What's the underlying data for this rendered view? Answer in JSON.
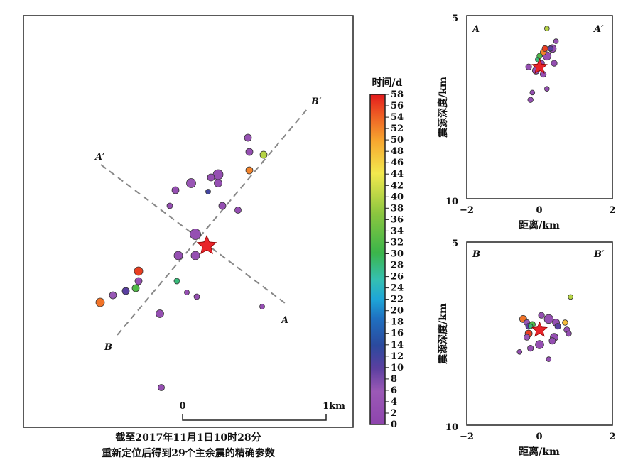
{
  "caption": {
    "line1": "截至2017年11月1日10时28分",
    "line2": "重新定位后得到29个主余震的精确参数"
  },
  "map": {
    "profile_labels": {
      "A": "A",
      "A_prime": "A′",
      "B": "B",
      "B_prime": "B′"
    },
    "scalebar": {
      "start_label": "0",
      "end_label": "1km"
    }
  },
  "colorbar": {
    "title": "时间/d",
    "min": 0,
    "max": 58,
    "ticks": [
      0,
      2,
      4,
      6,
      8,
      10,
      12,
      14,
      16,
      18,
      20,
      22,
      24,
      26,
      28,
      30,
      32,
      34,
      36,
      38,
      40,
      42,
      44,
      46,
      48,
      50,
      52,
      54,
      56,
      58
    ],
    "tick_labels": [
      "0",
      "2",
      "4",
      "6",
      "8",
      "10",
      "12",
      "14",
      "16",
      "18",
      "20",
      "22",
      "24",
      "26",
      "28",
      "30",
      "32",
      "34",
      "36",
      "38",
      "40",
      "42",
      "44",
      "46",
      "48",
      "50",
      "52",
      "54",
      "56",
      "58"
    ]
  },
  "sections": {
    "AA": {
      "left_label": "A",
      "right_label": "A′",
      "xlabel": "距离/km",
      "ylabel": "震源深度/km",
      "xticks": [
        "−2",
        "0",
        "2"
      ],
      "yticks": [
        "5",
        "10"
      ]
    },
    "BB": {
      "left_label": "B",
      "right_label": "B′",
      "xlabel": "距离/km",
      "ylabel": "震源深度/km",
      "xticks": [
        "−2",
        "0",
        "2"
      ],
      "yticks": [
        "5",
        "10"
      ]
    }
  },
  "colors": {
    "low": "#9a4fb5",
    "mid": "#3bb54a",
    "high": "#e31a1c",
    "star": "#e8242a"
  },
  "chart_data": [
    {
      "type": "scatter",
      "name": "map",
      "points": [
        {
          "x": 0.0,
          "y": 0.0,
          "day": 0,
          "mag": 2.0,
          "mainshock": true
        },
        {
          "x": 0.29,
          "y": -0.76,
          "day": 4,
          "mag": 1.0
        },
        {
          "x": 0.3,
          "y": -0.66,
          "day": 3,
          "mag": 1.0
        },
        {
          "x": 0.3,
          "y": -0.53,
          "day": 52,
          "mag": 1.0
        },
        {
          "x": 0.4,
          "y": -0.64,
          "day": 40,
          "mag": 1.0
        },
        {
          "x": 0.01,
          "y": -0.38,
          "day": 12,
          "mag": 0.7
        },
        {
          "x": -0.11,
          "y": -0.44,
          "day": 5,
          "mag": 1.3
        },
        {
          "x": -0.22,
          "y": -0.39,
          "day": 3,
          "mag": 1.0
        },
        {
          "x": 0.08,
          "y": -0.44,
          "day": 3,
          "mag": 1.1
        },
        {
          "x": 0.08,
          "y": -0.5,
          "day": 3,
          "mag": 1.4
        },
        {
          "x": 0.03,
          "y": -0.48,
          "day": 3,
          "mag": 1.0
        },
        {
          "x": 0.11,
          "y": -0.28,
          "day": 3,
          "mag": 1.0
        },
        {
          "x": 0.22,
          "y": -0.25,
          "day": 3,
          "mag": 0.9
        },
        {
          "x": -0.26,
          "y": -0.28,
          "day": 3,
          "mag": 0.8
        },
        {
          "x": -0.08,
          "y": -0.08,
          "day": 3,
          "mag": 1.5
        },
        {
          "x": -0.08,
          "y": 0.07,
          "day": 3,
          "mag": 1.2
        },
        {
          "x": -0.2,
          "y": 0.07,
          "day": 3,
          "mag": 1.2
        },
        {
          "x": -0.48,
          "y": 0.18,
          "day": 56,
          "mag": 1.2
        },
        {
          "x": -0.48,
          "y": 0.25,
          "day": 3,
          "mag": 1.0
        },
        {
          "x": -0.5,
          "y": 0.3,
          "day": 32,
          "mag": 1.0
        },
        {
          "x": -0.57,
          "y": 0.32,
          "day": 10,
          "mag": 1.0
        },
        {
          "x": -0.66,
          "y": 0.35,
          "day": 6,
          "mag": 1.0
        },
        {
          "x": -0.75,
          "y": 0.4,
          "day": 53,
          "mag": 1.2
        },
        {
          "x": -0.21,
          "y": 0.25,
          "day": 28,
          "mag": 0.8
        },
        {
          "x": -0.14,
          "y": 0.33,
          "day": 3,
          "mag": 0.7
        },
        {
          "x": -0.07,
          "y": 0.36,
          "day": 3,
          "mag": 0.8
        },
        {
          "x": -0.33,
          "y": 0.48,
          "day": 3,
          "mag": 1.1
        },
        {
          "x": 0.39,
          "y": 0.43,
          "day": 3,
          "mag": 0.7
        },
        {
          "x": -0.32,
          "y": 1.0,
          "day": 3,
          "mag": 0.9
        }
      ]
    },
    {
      "type": "scatter",
      "name": "section-AA",
      "xlim": [
        -2,
        2
      ],
      "ylim": [
        5,
        10
      ],
      "points": [
        {
          "x": 0.0,
          "y": 6.4,
          "day": 0,
          "mag": 2.0,
          "mainshock": true
        },
        {
          "x": 0.2,
          "y": 7.0,
          "day": 3,
          "mag": 0.8
        },
        {
          "x": -0.1,
          "y": 6.5,
          "day": 3,
          "mag": 1.2
        },
        {
          "x": 0.1,
          "y": 6.6,
          "day": 3,
          "mag": 1.0
        },
        {
          "x": 0.05,
          "y": 6.3,
          "day": 3,
          "mag": 1.0
        },
        {
          "x": 0.2,
          "y": 6.1,
          "day": 3,
          "mag": 1.4
        },
        {
          "x": 0.35,
          "y": 5.9,
          "day": 3,
          "mag": 1.3
        },
        {
          "x": 0.4,
          "y": 6.3,
          "day": 3,
          "mag": 1.0
        },
        {
          "x": 0.45,
          "y": 5.7,
          "day": 3,
          "mag": 0.8
        },
        {
          "x": 0.1,
          "y": 6.0,
          "day": 52,
          "mag": 1.0
        },
        {
          "x": 0.15,
          "y": 5.9,
          "day": 56,
          "mag": 1.0
        },
        {
          "x": 0.2,
          "y": 5.35,
          "day": 40,
          "mag": 0.8
        },
        {
          "x": -0.05,
          "y": 6.2,
          "day": 28,
          "mag": 0.8
        },
        {
          "x": 0.0,
          "y": 6.1,
          "day": 32,
          "mag": 0.9
        },
        {
          "x": -0.3,
          "y": 6.4,
          "day": 3,
          "mag": 1.0
        },
        {
          "x": -0.2,
          "y": 7.1,
          "day": 3,
          "mag": 0.8
        },
        {
          "x": -0.25,
          "y": 7.3,
          "day": 3,
          "mag": 0.9
        },
        {
          "x": 0.3,
          "y": 5.9,
          "day": 10,
          "mag": 0.9
        }
      ]
    },
    {
      "type": "scatter",
      "name": "section-BB",
      "xlim": [
        -2,
        2
      ],
      "ylim": [
        5,
        10
      ],
      "points": [
        {
          "x": 0.0,
          "y": 7.4,
          "day": 0,
          "mag": 2.0,
          "mainshock": true
        },
        {
          "x": -0.3,
          "y": 7.5,
          "day": 56,
          "mag": 1.2
        },
        {
          "x": -0.45,
          "y": 7.1,
          "day": 53,
          "mag": 1.2
        },
        {
          "x": -0.35,
          "y": 7.2,
          "day": 6,
          "mag": 1.0
        },
        {
          "x": -0.3,
          "y": 7.3,
          "day": 10,
          "mag": 1.0
        },
        {
          "x": -0.2,
          "y": 7.25,
          "day": 32,
          "mag": 1.0
        },
        {
          "x": -0.25,
          "y": 7.3,
          "day": 28,
          "mag": 0.8
        },
        {
          "x": 0.05,
          "y": 7.0,
          "day": 3,
          "mag": 1.0
        },
        {
          "x": 0.25,
          "y": 7.1,
          "day": 3,
          "mag": 1.5
        },
        {
          "x": 0.45,
          "y": 7.2,
          "day": 3,
          "mag": 1.2
        },
        {
          "x": 0.4,
          "y": 7.6,
          "day": 3,
          "mag": 1.3
        },
        {
          "x": 0.75,
          "y": 7.4,
          "day": 3,
          "mag": 1.0
        },
        {
          "x": 0.8,
          "y": 7.5,
          "day": 3,
          "mag": 0.9
        },
        {
          "x": 0.5,
          "y": 7.3,
          "day": 10,
          "mag": 1.0
        },
        {
          "x": 0.7,
          "y": 7.2,
          "day": 48,
          "mag": 0.9
        },
        {
          "x": 0.85,
          "y": 6.5,
          "day": 40,
          "mag": 0.8
        },
        {
          "x": 0.0,
          "y": 7.8,
          "day": 3,
          "mag": 1.4
        },
        {
          "x": -0.25,
          "y": 7.9,
          "day": 3,
          "mag": 1.0
        },
        {
          "x": -0.55,
          "y": 8.0,
          "day": 3,
          "mag": 0.8
        },
        {
          "x": 0.25,
          "y": 8.2,
          "day": 3,
          "mag": 0.8
        },
        {
          "x": 0.35,
          "y": 7.7,
          "day": 3,
          "mag": 1.1
        },
        {
          "x": -0.35,
          "y": 7.6,
          "day": 5,
          "mag": 1.0
        }
      ]
    }
  ]
}
